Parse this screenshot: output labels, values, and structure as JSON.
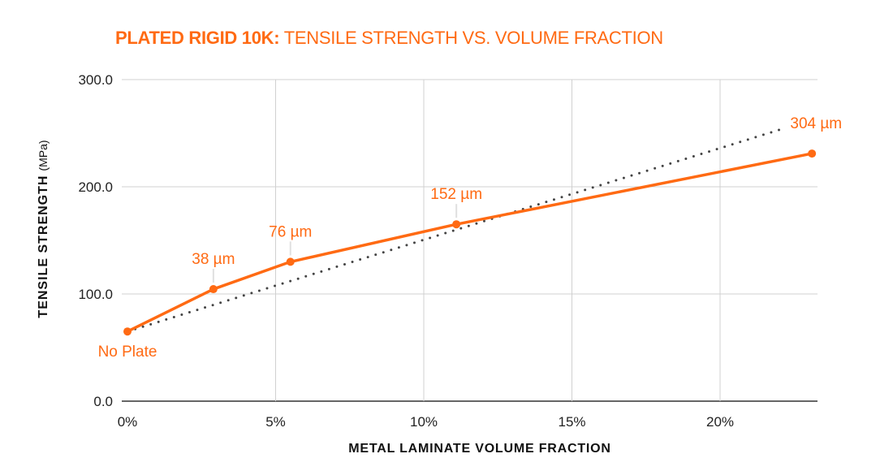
{
  "chart_data": {
    "type": "line",
    "title_bold": "PLATED RIGID 10K:",
    "title_rest": "TENSILE STRENGTH VS. VOLUME FRACTION",
    "xlabel": "METAL LAMINATE VOLUME FRACTION",
    "ylabel_bold": "TENSILE STRENGTH",
    "ylabel_unit": "(MPa)",
    "xlim": [
      0,
      23.3
    ],
    "ylim": [
      0,
      300
    ],
    "x_ticks": [
      0,
      5,
      10,
      15,
      20
    ],
    "x_tick_labels": [
      "0%",
      "5%",
      "10%",
      "15%",
      "20%"
    ],
    "y_ticks": [
      0,
      100,
      200,
      300
    ],
    "y_tick_labels": [
      "0.0",
      "100.0",
      "200.0",
      "300.0"
    ],
    "grid": true,
    "series": [
      {
        "x": [
          0,
          2.9,
          5.5,
          11.1,
          23.1
        ],
        "y": [
          65,
          104.5,
          130,
          165,
          231
        ],
        "labels": [
          "No Plate",
          "38 µm",
          "76 µm",
          "152 µm",
          "304 µm"
        ],
        "color": "#ff6a13"
      }
    ],
    "trendline": {
      "x": [
        0,
        22.1
      ],
      "y": [
        65,
        254
      ],
      "style": "dotted",
      "color": "#444444"
    }
  }
}
